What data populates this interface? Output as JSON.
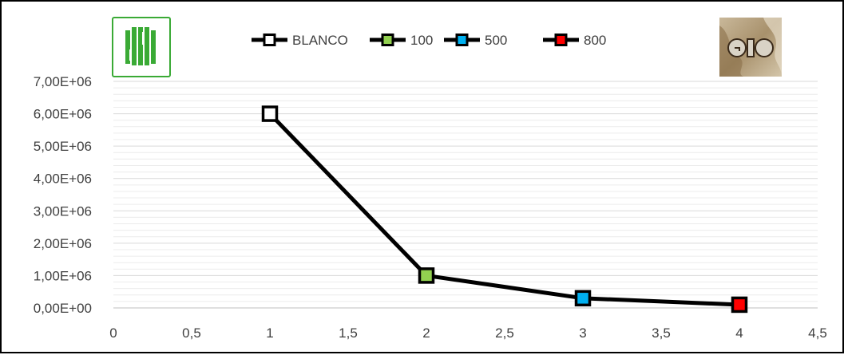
{
  "chart_data": {
    "type": "scatter",
    "x": [
      1,
      2,
      3,
      4
    ],
    "y": [
      6000000,
      1000000,
      300000,
      100000
    ],
    "point_colors": [
      "#ffffff",
      "#92d050",
      "#00b0f0",
      "#ff0000"
    ],
    "line_color": "#000000",
    "xlim": [
      0,
      4.5
    ],
    "ylim": [
      0,
      7000000
    ],
    "x_ticks": [
      0,
      0.5,
      1,
      1.5,
      2,
      2.5,
      3,
      3.5,
      4,
      4.5
    ],
    "x_tick_labels": [
      "0",
      "0,5",
      "1",
      "1,5",
      "2",
      "2,5",
      "3",
      "3,5",
      "4",
      "4,5"
    ],
    "y_ticks": [
      0,
      1000000,
      2000000,
      3000000,
      4000000,
      5000000,
      6000000,
      7000000
    ],
    "y_tick_labels": [
      "0,00E+00",
      "1,00E+06",
      "2,00E+06",
      "3,00E+06",
      "4,00E+06",
      "5,00E+06",
      "6,00E+06",
      "7,00E+06"
    ],
    "minor_gridlines_per_major": 5,
    "grid": true,
    "legend_position": "top",
    "legend": [
      {
        "label": "BLANCO",
        "color": "#ffffff"
      },
      {
        "label": "100",
        "color": "#92d050"
      },
      {
        "label": "500",
        "color": "#00b0f0"
      },
      {
        "label": "800",
        "color": "#ff0000"
      }
    ],
    "logos": [
      {
        "name": "uis-logo",
        "text": "UIS",
        "color": "#3aaa35"
      },
      {
        "name": "gic-logo",
        "text": "GIC"
      }
    ]
  }
}
